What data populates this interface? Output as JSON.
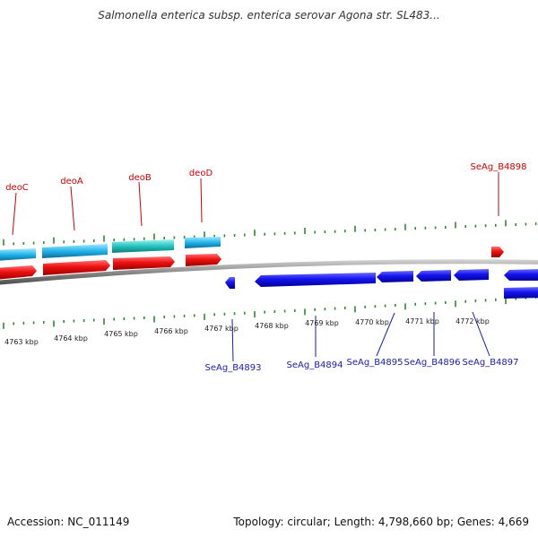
{
  "header": {
    "title": "Salmonella enterica subsp. enterica serovar Agona str. SL483..."
  },
  "footer": {
    "accession": "Accession: NC_011149",
    "summary": "Topology: circular; Length: 4,798,660 bp; Genes: 4,669"
  },
  "colors": {
    "backbone": "#8a8a8a",
    "forward_gene": "#ee0000",
    "forward_label": "#cc0000",
    "forward_operon": "#33bbee",
    "reverse_gene": "#1010ee",
    "reverse_label": "#1a1aaa",
    "tick": "#2e8b2e"
  },
  "scale": {
    "unit": "kbp",
    "labels": [
      "4763 kbp",
      "4764 kbp",
      "4765 kbp",
      "4766 kbp",
      "4767 kbp",
      "4768 kbp",
      "4769 kbp",
      "4770 kbp",
      "4771 kbp",
      "4772 kbp"
    ]
  },
  "genes": {
    "forward": [
      "deoC",
      "deoA",
      "deoB",
      "deoD",
      "SeAg_B4898"
    ],
    "reverse": [
      "SeAg_B4893",
      "SeAg_B4894",
      "SeAg_B4895",
      "SeAg_B4896",
      "SeAg_B4897"
    ]
  }
}
